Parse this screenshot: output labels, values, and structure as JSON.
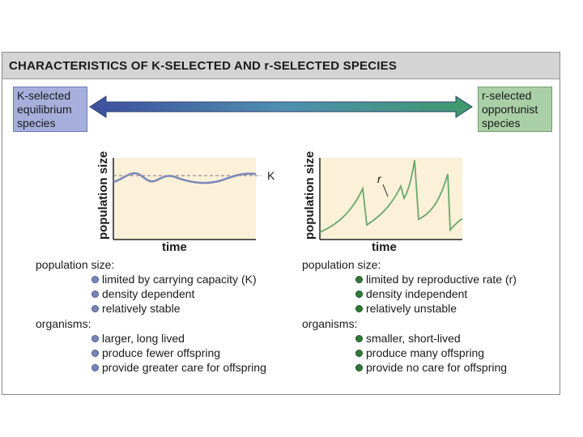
{
  "title": "CHARACTERISTICS OF K-SELECTED AND r-SELECTED SPECIES",
  "k_box": {
    "lines": [
      "K-selected",
      "equilibrium",
      "species"
    ]
  },
  "r_box": {
    "lines": [
      "r-selected",
      "opportunist",
      "species"
    ]
  },
  "k_graph": {
    "ylabel": "population size",
    "xlabel": "time",
    "marker": "K"
  },
  "r_graph": {
    "ylabel": "population size",
    "xlabel": "time",
    "marker": "r"
  },
  "k_column": {
    "population_heading": "population size:",
    "population_items": [
      "limited by carrying capacity (K)",
      "density dependent",
      "relatively stable"
    ],
    "organisms_heading": "organisms:",
    "organisms_items": [
      "larger, long lived",
      "produce fewer offspring",
      "provide greater care for offspring"
    ]
  },
  "r_column": {
    "population_heading": "population size:",
    "population_items": [
      "limited by reproductive rate (r)",
      "density independent",
      "relatively unstable"
    ],
    "organisms_heading": "organisms:",
    "organisms_items": [
      "smaller, short-lived",
      "produce many offspring",
      "provide no care for offspring"
    ]
  },
  "colors": {
    "k_accent": "#a6afdc",
    "r_accent": "#a9cfa6",
    "graph_bg": "#fbf0d8",
    "k_curve": "#7b86b8",
    "r_curve": "#6aa86e"
  }
}
